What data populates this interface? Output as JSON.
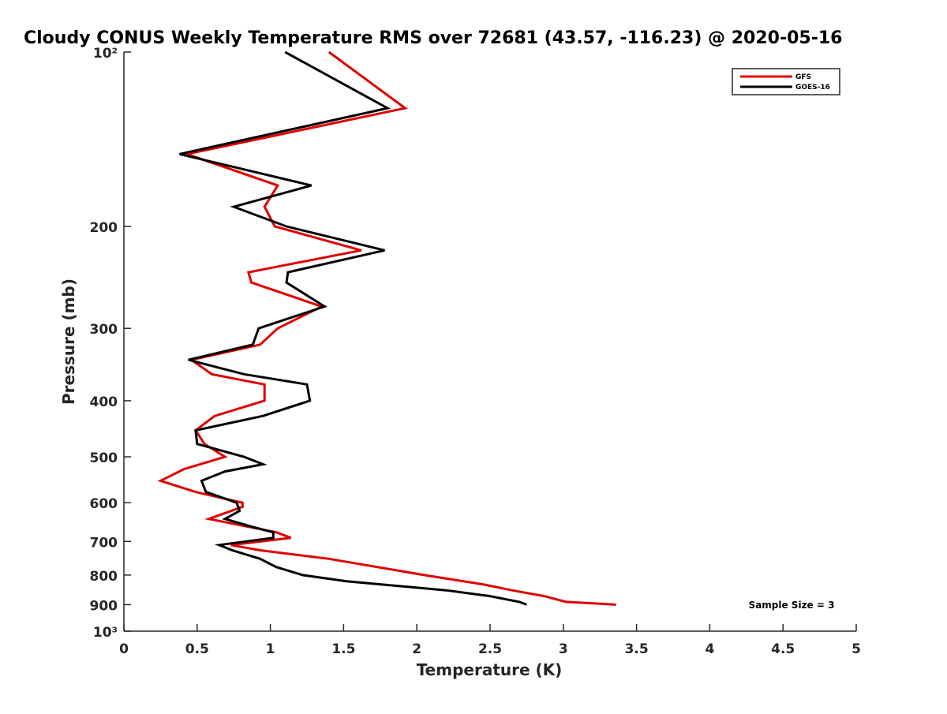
{
  "chart_data": {
    "type": "line",
    "title": "Cloudy CONUS Weekly Temperature RMS over 72681 (43.57, -116.23) @ 2020-05-16",
    "xlabel": "Temperature (K)",
    "ylabel": "Pressure (mb)",
    "xlim": [
      0,
      5
    ],
    "ylim": [
      1000,
      100
    ],
    "yscale": "log",
    "y_reversed": true,
    "x_ticks": [
      0,
      0.5,
      1,
      1.5,
      2,
      2.5,
      3,
      3.5,
      4,
      4.5,
      5
    ],
    "x_tick_labels": [
      "0",
      "0.5",
      "1",
      "1.5",
      "2",
      "2.5",
      "3",
      "3.5",
      "4",
      "4.5",
      "5"
    ],
    "y_ticks": [
      100,
      200,
      300,
      400,
      500,
      600,
      700,
      800,
      900,
      1000
    ],
    "y_tick_labels": [
      "10²",
      "200",
      "300",
      "400",
      "500",
      "600",
      "700",
      "800",
      "900",
      "10³"
    ],
    "grid": false,
    "legend_position": "top-right",
    "annotation": "Sample Size = 3",
    "series": [
      {
        "name": "GFS",
        "color": "#e00000",
        "points": [
          [
            1.4,
            100
          ],
          [
            1.92,
            125
          ],
          [
            0.43,
            150
          ],
          [
            1.05,
            170
          ],
          [
            0.96,
            185
          ],
          [
            1.03,
            200
          ],
          [
            1.62,
            220
          ],
          [
            0.85,
            240
          ],
          [
            0.87,
            250
          ],
          [
            1.35,
            275
          ],
          [
            1.05,
            300
          ],
          [
            0.93,
            320
          ],
          [
            0.46,
            340
          ],
          [
            0.6,
            360
          ],
          [
            0.96,
            375
          ],
          [
            0.96,
            400
          ],
          [
            0.62,
            425
          ],
          [
            0.49,
            450
          ],
          [
            0.55,
            475
          ],
          [
            0.69,
            500
          ],
          [
            0.41,
            525
          ],
          [
            0.25,
            550
          ],
          [
            0.49,
            575
          ],
          [
            0.81,
            600
          ],
          [
            0.81,
            610
          ],
          [
            0.58,
            640
          ],
          [
            1.04,
            675
          ],
          [
            1.14,
            690
          ],
          [
            0.73,
            710
          ],
          [
            0.93,
            725
          ],
          [
            1.4,
            750
          ],
          [
            2.05,
            800
          ],
          [
            2.45,
            830
          ],
          [
            2.65,
            850
          ],
          [
            2.87,
            870
          ],
          [
            3.02,
            890
          ],
          [
            3.36,
            900
          ]
        ]
      },
      {
        "name": "GOES-16",
        "color": "#000000",
        "points": [
          [
            1.1,
            100
          ],
          [
            1.8,
            125
          ],
          [
            0.38,
            150
          ],
          [
            1.28,
            170
          ],
          [
            0.75,
            185
          ],
          [
            1.11,
            200
          ],
          [
            1.78,
            220
          ],
          [
            1.12,
            240
          ],
          [
            1.11,
            250
          ],
          [
            1.37,
            275
          ],
          [
            0.92,
            300
          ],
          [
            0.88,
            320
          ],
          [
            0.44,
            340
          ],
          [
            0.82,
            360
          ],
          [
            1.25,
            375
          ],
          [
            1.27,
            400
          ],
          [
            0.95,
            425
          ],
          [
            0.49,
            450
          ],
          [
            0.5,
            475
          ],
          [
            0.82,
            500
          ],
          [
            0.95,
            515
          ],
          [
            0.69,
            530
          ],
          [
            0.53,
            550
          ],
          [
            0.56,
            575
          ],
          [
            0.77,
            600
          ],
          [
            0.79,
            620
          ],
          [
            0.69,
            640
          ],
          [
            0.87,
            660
          ],
          [
            1.02,
            675
          ],
          [
            1.02,
            690
          ],
          [
            0.65,
            710
          ],
          [
            0.74,
            725
          ],
          [
            0.93,
            750
          ],
          [
            1.04,
            775
          ],
          [
            1.22,
            800
          ],
          [
            1.52,
            820
          ],
          [
            2.2,
            850
          ],
          [
            2.5,
            870
          ],
          [
            2.7,
            890
          ],
          [
            2.75,
            900
          ]
        ]
      }
    ]
  }
}
